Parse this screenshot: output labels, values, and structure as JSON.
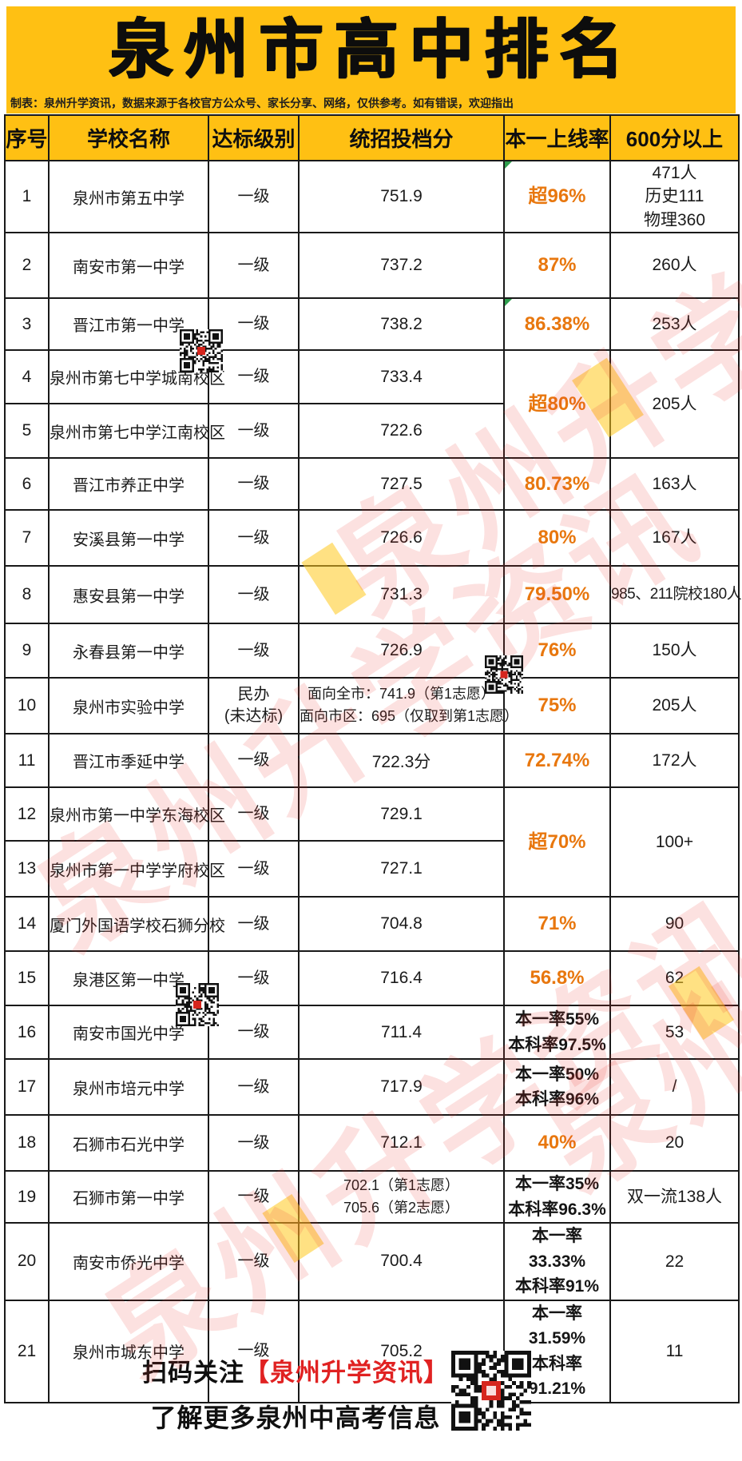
{
  "title": "泉州市高中排名",
  "subtitle": "制表：泉州升学资讯，数据来源于各校官方公众号、家长分享、网络，仅供参考。如有错误，欢迎指出",
  "watermark_text": "泉州升学资讯",
  "colors": {
    "brand_yellow": "#FFC013",
    "accent_orange": "#E8770E",
    "footer_red": "#E02222",
    "watermark_red": "#E8372D",
    "corner_green": "#2F9E4E"
  },
  "table": {
    "headers": [
      "序号",
      "学校名称",
      "达标级别",
      "统招投档分",
      "本一上线率",
      "600分以上"
    ],
    "rows": [
      {
        "no": "1",
        "school": "泉州市第五中学",
        "level": [
          "一级"
        ],
        "score": [
          "751.9"
        ],
        "rate": {
          "rowspan": 1,
          "corner": true,
          "lines": [
            {
              "text": "超96%",
              "accent": true
            }
          ]
        },
        "six": {
          "rowspan": 1,
          "lines": [
            "471人",
            "历史111",
            "物理360"
          ]
        }
      },
      {
        "no": "2",
        "school": "南安市第一中学",
        "level": [
          "一级"
        ],
        "score": [
          "737.2"
        ],
        "rate": {
          "rowspan": 1,
          "lines": [
            {
              "text": "87%",
              "accent": true
            }
          ]
        },
        "six": {
          "rowspan": 1,
          "lines": [
            "260人"
          ]
        }
      },
      {
        "no": "3",
        "school": "晋江市第一中学",
        "level": [
          "一级"
        ],
        "score": [
          "738.2"
        ],
        "rate": {
          "rowspan": 1,
          "corner": true,
          "lines": [
            {
              "text": "86.38%",
              "accent": true
            }
          ]
        },
        "six": {
          "rowspan": 1,
          "lines": [
            "253人"
          ]
        }
      },
      {
        "no": "4",
        "school": "泉州市第七中学城南校区",
        "level": [
          "一级"
        ],
        "score": [
          "733.4"
        ],
        "rate": {
          "rowspan": 2,
          "lines": [
            {
              "text": "超80%",
              "accent": true
            }
          ]
        },
        "six": {
          "rowspan": 2,
          "lines": [
            "205人"
          ]
        }
      },
      {
        "no": "5",
        "school": "泉州市第七中学江南校区",
        "level": [
          "一级"
        ],
        "score": [
          "722.6"
        ],
        "rate": null,
        "six": null
      },
      {
        "no": "6",
        "school": "晋江市养正中学",
        "level": [
          "一级"
        ],
        "score": [
          "727.5"
        ],
        "rate": {
          "rowspan": 1,
          "lines": [
            {
              "text": "80.73%",
              "accent": true
            }
          ]
        },
        "six": {
          "rowspan": 1,
          "lines": [
            "163人"
          ]
        }
      },
      {
        "no": "7",
        "school": "安溪县第一中学",
        "level": [
          "一级"
        ],
        "score": [
          "726.6"
        ],
        "rate": {
          "rowspan": 1,
          "lines": [
            {
              "text": "80%",
              "accent": true
            }
          ]
        },
        "six": {
          "rowspan": 1,
          "lines": [
            "167人"
          ]
        }
      },
      {
        "no": "8",
        "school": "惠安县第一中学",
        "level": [
          "一级"
        ],
        "score": [
          "731.3"
        ],
        "rate": {
          "rowspan": 1,
          "lines": [
            {
              "text": "79.50%",
              "accent": true
            }
          ]
        },
        "six": {
          "rowspan": 1,
          "lines": [
            "985、211院校180人"
          ]
        }
      },
      {
        "no": "9",
        "school": "永春县第一中学",
        "level": [
          "一级"
        ],
        "score": [
          "726.9"
        ],
        "rate": {
          "rowspan": 1,
          "lines": [
            {
              "text": "76%",
              "accent": true
            }
          ]
        },
        "six": {
          "rowspan": 1,
          "lines": [
            "150人"
          ]
        }
      },
      {
        "no": "10",
        "school": "泉州市实验中学",
        "level": [
          "民办",
          "(未达标)"
        ],
        "score": [
          "面向全市：741.9（第1志愿）",
          "面向市区：695（仅取到第1志愿）"
        ],
        "rate": {
          "rowspan": 1,
          "lines": [
            {
              "text": "75%",
              "accent": true
            }
          ]
        },
        "six": {
          "rowspan": 1,
          "lines": [
            "205人"
          ]
        }
      },
      {
        "no": "11",
        "school": "晋江市季延中学",
        "level": [
          "一级"
        ],
        "score": [
          "722.3分"
        ],
        "rate": {
          "rowspan": 1,
          "lines": [
            {
              "text": "72.74%",
              "accent": true
            }
          ]
        },
        "six": {
          "rowspan": 1,
          "lines": [
            "172人"
          ]
        }
      },
      {
        "no": "12",
        "school": "泉州市第一中学东海校区",
        "level": [
          "一级"
        ],
        "score": [
          "729.1"
        ],
        "rate": {
          "rowspan": 2,
          "lines": [
            {
              "text": "超70%",
              "accent": true
            }
          ]
        },
        "six": {
          "rowspan": 2,
          "lines": [
            "100+"
          ]
        }
      },
      {
        "no": "13",
        "school": "泉州市第一中学学府校区",
        "level": [
          "一级"
        ],
        "score": [
          "727.1"
        ],
        "rate": null,
        "six": null
      },
      {
        "no": "14",
        "school": "厦门外国语学校石狮分校",
        "level": [
          "一级"
        ],
        "score": [
          "704.8"
        ],
        "rate": {
          "rowspan": 1,
          "lines": [
            {
              "text": "71%",
              "accent": true
            }
          ]
        },
        "six": {
          "rowspan": 1,
          "lines": [
            "90"
          ]
        }
      },
      {
        "no": "15",
        "school": "泉港区第一中学",
        "level": [
          "一级"
        ],
        "score": [
          "716.4"
        ],
        "rate": {
          "rowspan": 1,
          "lines": [
            {
              "text": "56.8%",
              "accent": true
            }
          ]
        },
        "six": {
          "rowspan": 1,
          "lines": [
            "62"
          ]
        }
      },
      {
        "no": "16",
        "school": "南安市国光中学",
        "level": [
          "一级"
        ],
        "score": [
          "711.4"
        ],
        "rate": {
          "rowspan": 1,
          "lines": [
            {
              "text": "本一率55%",
              "accent": true
            },
            {
              "text": "本科率97.5%",
              "accent": false
            }
          ]
        },
        "six": {
          "rowspan": 1,
          "lines": [
            "53"
          ]
        }
      },
      {
        "no": "17",
        "school": "泉州市培元中学",
        "level": [
          "一级"
        ],
        "score": [
          "717.9"
        ],
        "rate": {
          "rowspan": 1,
          "lines": [
            {
              "text": "本一率50%",
              "accent": true
            },
            {
              "text": "本科率96%",
              "accent": false
            }
          ]
        },
        "six": {
          "rowspan": 1,
          "lines": [
            "/"
          ]
        }
      },
      {
        "no": "18",
        "school": "石狮市石光中学",
        "level": [
          "一级"
        ],
        "score": [
          "712.1"
        ],
        "rate": {
          "rowspan": 1,
          "lines": [
            {
              "text": "40%",
              "accent": true
            }
          ]
        },
        "six": {
          "rowspan": 1,
          "lines": [
            "20"
          ]
        }
      },
      {
        "no": "19",
        "school": "石狮市第一中学",
        "level": [
          "一级"
        ],
        "score": [
          "702.1（第1志愿）",
          "705.6（第2志愿）"
        ],
        "rate": {
          "rowspan": 1,
          "lines": [
            {
              "text": "本一率35%",
              "accent": true
            },
            {
              "text": "本科率96.3%",
              "accent": false
            }
          ]
        },
        "six": {
          "rowspan": 1,
          "lines": [
            "双一流138人"
          ]
        }
      },
      {
        "no": "20",
        "school": "南安市侨光中学",
        "level": [
          "一级"
        ],
        "score": [
          "700.4"
        ],
        "rate": {
          "rowspan": 1,
          "lines": [
            {
              "text": "本一率33.33%",
              "accent": true
            },
            {
              "text": "本科率91%",
              "accent": false
            }
          ]
        },
        "six": {
          "rowspan": 1,
          "lines": [
            "22"
          ]
        }
      },
      {
        "no": "21",
        "school": "泉州市城东中学",
        "level": [
          "一级"
        ],
        "score": [
          "705.2"
        ],
        "rate": {
          "rowspan": 1,
          "lines": [
            {
              "text": "本一率31.59%",
              "accent": true
            },
            {
              "text": "本科率91.21%",
              "accent": false
            }
          ]
        },
        "six": {
          "rowspan": 1,
          "lines": [
            "11"
          ]
        }
      }
    ]
  },
  "footer": {
    "line1_prefix": "扫码关注",
    "line1_highlight": "【泉州升学资讯】",
    "line2": "了解更多泉州中高考信息",
    "qr_icon": "wechat-qr-code"
  }
}
